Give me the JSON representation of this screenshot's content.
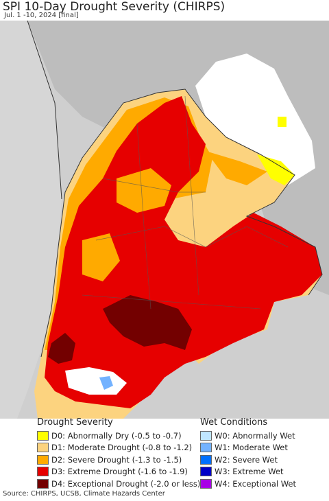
{
  "title": "SPI 10-Day Drought Severity (CHIRPS)",
  "subtitle": "Jul. 1 -10, 2024 [final]",
  "legend_drought": {
    "title": "Drought Severity",
    "items": [
      {
        "label": "D0: Abnormally Dry (-0.5 to -0.7)",
        "color": "#ffff00"
      },
      {
        "label": "D1: Moderate Drought (-0.8 to -1.2)",
        "color": "#fcd37f"
      },
      {
        "label": "D2: Severe Drought (-1.3 to -1.5)",
        "color": "#ffaa00"
      },
      {
        "label": "D3: Extreme Drought (-1.6 to -1.9)",
        "color": "#e60000"
      },
      {
        "label": "D4: Exceptional Drought (-2.0 or less)",
        "color": "#730000"
      }
    ]
  },
  "legend_wet": {
    "title": "Wet Conditions",
    "items": [
      {
        "label": "W0: Abnormally Wet",
        "color": "#bfe6ff"
      },
      {
        "label": "W1: Moderate Wet",
        "color": "#73b2ff"
      },
      {
        "label": "W2: Severe Wet",
        "color": "#0070ff"
      },
      {
        "label": "W3: Extreme Wet",
        "color": "#0000c8"
      },
      {
        "label": "W4: Exceptional Wet",
        "color": "#a800e6"
      }
    ]
  },
  "footer": "Source: CHIRPS, UCSB, Climate Hazards Center"
}
